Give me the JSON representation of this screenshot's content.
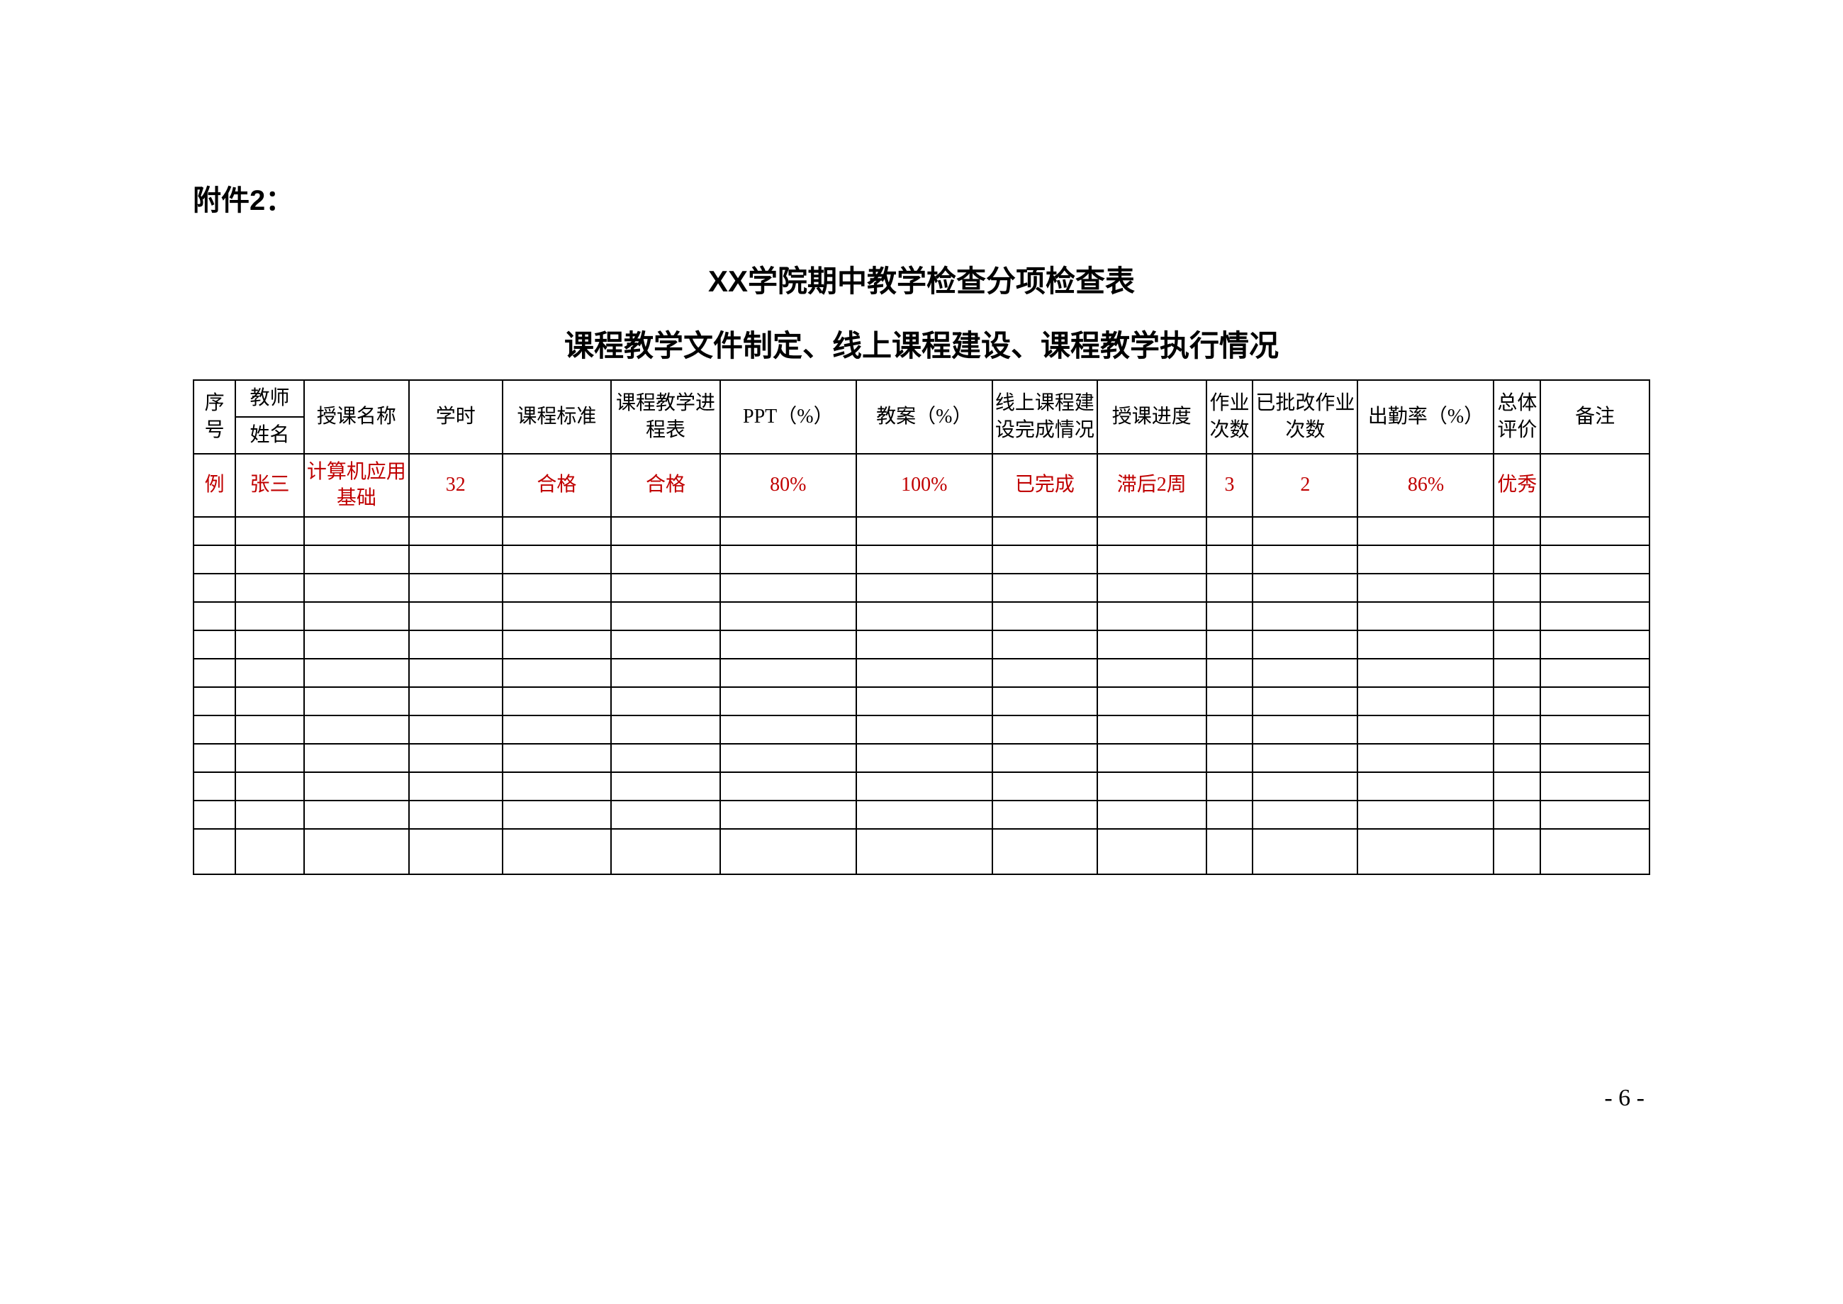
{
  "attachment_label": "附件2：",
  "title_line1": "XX学院期中教学检查分项检查表",
  "title_line2": "课程教学文件制定、线上课程建设、课程教学执行情况",
  "headers": {
    "seq": "序号",
    "teacher_section": "教师",
    "teacher_name": "姓名",
    "course_name": "授课名称",
    "hours": "学时",
    "standard": "课程标准",
    "schedule": "课程教学进程表",
    "ppt": "PPT（%）",
    "lesson_plan": "教案（%）",
    "online_build": "线上课程建设完成情况",
    "progress": "授课进度",
    "hw_count": "作业次数",
    "hw_graded": "已批改作业次数",
    "attendance": "出勤率（%）",
    "evaluation": "总体评价",
    "notes": "备注"
  },
  "example_row": {
    "seq": "例",
    "teacher_name": "张三",
    "course_name": "计算机应用基础",
    "hours": "32",
    "standard": "合格",
    "schedule": "合格",
    "ppt": "80%",
    "lesson_plan": "100%",
    "online_build": "已完成",
    "progress": "滞后2周",
    "hw_count": "3",
    "hw_graded": "2",
    "attendance": "86%",
    "evaluation": "优秀",
    "notes": ""
  },
  "empty_row_count": 12,
  "page_number": "- 6 -",
  "colors": {
    "text": "#000000",
    "example_text": "#c00000",
    "border": "#000000",
    "background": "#ffffff"
  },
  "typography": {
    "label_fontsize": 40,
    "title_fontsize": 42,
    "cell_fontsize": 28,
    "page_num_fontsize": 34
  }
}
